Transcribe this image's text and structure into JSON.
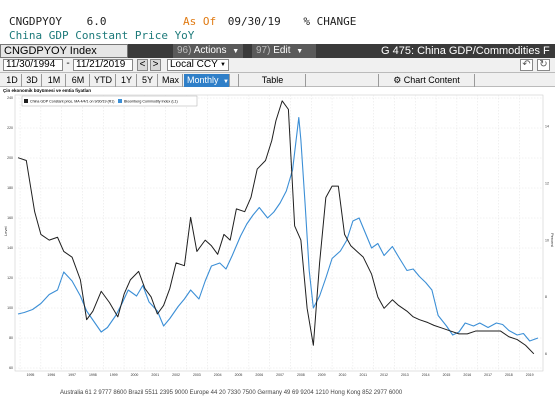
{
  "header": {
    "ticker": "CNGDPYOY",
    "value": "6.0",
    "as_of_label": "As Of",
    "as_of_date": "09/30/19",
    "change_label": "% CHANGE",
    "subtitle": "China GDP Constant Price YoY"
  },
  "toolbar": {
    "security": "CNGDPYOY Index",
    "actions_num": "96)",
    "actions_label": "Actions",
    "edit_num": "97)",
    "edit_label": "Edit",
    "chart_title": "G 475: China GDP/Commodities F"
  },
  "dates": {
    "start": "11/30/1994",
    "end": "11/21/2019",
    "currency": "Local CCY",
    "prev": "<",
    "next": ">"
  },
  "periods": [
    "1D",
    "3D",
    "1M",
    "6M",
    "YTD",
    "1Y",
    "5Y",
    "Max"
  ],
  "frequency": "Monthly",
  "table_label": "Table",
  "chart_content_label": "Chart Content",
  "chart_header": "Çin ekonomik büyümesi ve emtia fiyatları",
  "legend": [
    "China GDP Constant price, MA 4/4/1 on 9/30/19 (R1)",
    "Bloomberg Commodity Index (L1)"
  ],
  "colors": {
    "gdp": "#1f1f1f",
    "commodity": "#3c8fd6",
    "orange": "#e07a12",
    "teal": "#1d7a7a",
    "bar_bg": "#3a3a3a",
    "selected": "#2f7fc8"
  },
  "bottom_text": "Australia 61 2 9777 8600 Brazil 5511 2395 9000 Europe 44 20 7330 7500 Germany 49 69 9204 1210 Hong Kong 852 2977 6000",
  "chart_data": {
    "type": "line",
    "xlabel": "",
    "ylabel_left": "Level",
    "ylabel_right": "Percent",
    "x_range": [
      1994.9,
      2019.9
    ],
    "x_ticks": [
      "1995",
      "1996",
      "1997",
      "1998",
      "1999",
      "2000",
      "2001",
      "2002",
      "2003",
      "2004",
      "2005",
      "2006",
      "2007",
      "2008",
      "2009",
      "2010",
      "2011",
      "2012",
      "2013",
      "2014",
      "2015",
      "2016",
      "2017",
      "2018",
      "2019"
    ],
    "left_axis": {
      "range": [
        60,
        240
      ],
      "ticks": [
        "60",
        "80",
        "100",
        "120",
        "140",
        "160",
        "180",
        "200",
        "220",
        "240"
      ]
    },
    "right_axis": {
      "range": [
        5.5,
        15
      ],
      "ticks": [
        "6",
        "8",
        "10",
        "12",
        "14"
      ]
    },
    "series": [
      {
        "name": "Bloomberg Commodity Index (L1)",
        "axis": "left",
        "x": [
          1994.9,
          1995.2,
          1995.6,
          1996.0,
          1996.4,
          1996.8,
          1997.1,
          1997.5,
          1997.9,
          1998.2,
          1998.6,
          1998.9,
          1999.2,
          1999.6,
          1999.9,
          2000.2,
          2000.6,
          2000.9,
          2001.2,
          2001.6,
          2001.9,
          2002.2,
          2002.6,
          2002.9,
          2003.2,
          2003.6,
          2003.9,
          2004.2,
          2004.6,
          2004.9,
          2005.2,
          2005.6,
          2005.9,
          2006.2,
          2006.5,
          2006.9,
          2007.2,
          2007.5,
          2007.8,
          2008.1,
          2008.4,
          2008.5,
          2008.7,
          2008.9,
          2009.1,
          2009.4,
          2009.7,
          2010.0,
          2010.4,
          2010.7,
          2011.0,
          2011.3,
          2011.6,
          2011.9,
          2012.2,
          2012.5,
          2012.9,
          2013.2,
          2013.6,
          2013.9,
          2014.2,
          2014.5,
          2014.8,
          2015.1,
          2015.5,
          2015.8,
          2016.1,
          2016.4,
          2016.8,
          2017.1,
          2017.5,
          2017.9,
          2018.2,
          2018.5,
          2018.9,
          2019.2,
          2019.5,
          2019.9
        ],
        "values": [
          96,
          97,
          99,
          103,
          109,
          112,
          124,
          118,
          108,
          98,
          90,
          84,
          87,
          95,
          103,
          112,
          108,
          115,
          104,
          98,
          88,
          93,
          101,
          106,
          112,
          106,
          118,
          128,
          130,
          126,
          135,
          148,
          156,
          162,
          167,
          160,
          164,
          170,
          178,
          192,
          227,
          212,
          170,
          125,
          100,
          108,
          120,
          133,
          138,
          145,
          158,
          160,
          150,
          140,
          143,
          135,
          141,
          134,
          125,
          126,
          121,
          117,
          112,
          95,
          88,
          82,
          84,
          90,
          88,
          90,
          87,
          90,
          89,
          85,
          82,
          83,
          78,
          80
        ]
      },
      {
        "name": "China GDP Constant price, MA 4/4/1 on 9/30/19 (R1)",
        "axis": "right",
        "x": [
          1994.9,
          1995.3,
          1995.7,
          1996.0,
          1996.4,
          1996.8,
          1997.1,
          1997.5,
          1997.9,
          1998.2,
          1998.5,
          1998.9,
          1999.3,
          1999.7,
          2000.0,
          2000.3,
          2000.7,
          2001.0,
          2001.3,
          2001.6,
          2001.9,
          2002.2,
          2002.5,
          2002.9,
          2003.2,
          2003.5,
          2003.9,
          2004.2,
          2004.5,
          2004.8,
          2005.1,
          2005.4,
          2005.8,
          2006.1,
          2006.4,
          2006.8,
          2007.1,
          2007.3,
          2007.6,
          2007.9,
          2008.2,
          2008.5,
          2008.8,
          2009.1,
          2009.4,
          2009.7,
          2010.0,
          2010.3,
          2010.6,
          2010.9,
          2011.2,
          2011.5,
          2011.9,
          2012.2,
          2012.5,
          2012.9,
          2013.2,
          2013.6,
          2013.9,
          2014.2,
          2014.6,
          2014.9,
          2015.3,
          2015.7,
          2016.1,
          2016.5,
          2016.9,
          2017.3,
          2017.7,
          2018.1,
          2018.5,
          2018.9,
          2019.3,
          2019.7
        ],
        "values": [
          12.9,
          12.8,
          11.0,
          10.2,
          10.0,
          10.1,
          9.6,
          9.4,
          8.6,
          7.2,
          7.5,
          8.2,
          7.8,
          7.3,
          8.1,
          8.6,
          8.9,
          8.3,
          8.0,
          7.4,
          7.7,
          8.3,
          9.2,
          9.1,
          10.8,
          9.6,
          10.0,
          9.8,
          9.5,
          10.2,
          10.0,
          11.1,
          11.0,
          11.5,
          12.5,
          12.8,
          13.5,
          14.2,
          14.9,
          14.6,
          10.5,
          10.0,
          7.6,
          6.3,
          9.2,
          11.5,
          11.9,
          11.9,
          10.2,
          9.8,
          9.6,
          9.4,
          8.8,
          8.0,
          7.6,
          7.9,
          7.7,
          7.5,
          7.3,
          7.2,
          7.1,
          7.0,
          6.9,
          6.8,
          6.7,
          6.7,
          6.8,
          6.8,
          6.8,
          6.8,
          6.6,
          6.5,
          6.3,
          6.0
        ]
      }
    ]
  }
}
